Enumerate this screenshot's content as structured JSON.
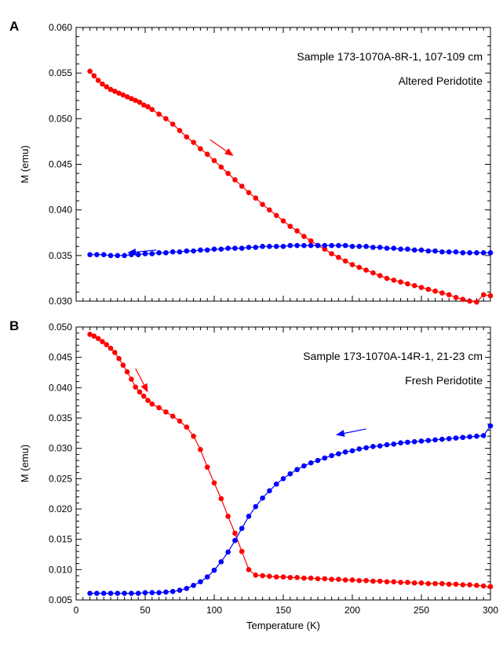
{
  "panels_meta": {
    "colors": {
      "cooling": "#ff0000",
      "warming": "#0000ff",
      "axis": "#000000"
    }
  },
  "chart_data": [
    {
      "type": "scatter",
      "panel_label": "A",
      "ylabel": "M (emu)",
      "xlabel": "",
      "xlim": [
        0,
        300
      ],
      "ylim": [
        0.03,
        0.06
      ],
      "xticks": [
        0,
        50,
        100,
        150,
        200,
        250,
        300
      ],
      "xticklabels_shown": false,
      "yticks": [
        "0.030",
        "0.035",
        "0.040",
        "0.045",
        "0.050",
        "0.055",
        "0.060"
      ],
      "annotations": [
        "Sample 173-1070A-8R-1, 107-109 cm",
        "Altered Peridotite"
      ],
      "arrows": [
        {
          "series": "cooling",
          "color": "#ff0000",
          "from": [
            97,
            0.0477
          ],
          "to": [
            114,
            0.0459
          ]
        },
        {
          "series": "warming",
          "color": "#0000ff",
          "from": [
            58,
            0.0356
          ],
          "to": [
            37,
            0.0353
          ]
        }
      ],
      "series": [
        {
          "color": "#ff0000",
          "x": [
            10,
            13,
            16,
            19,
            22,
            25,
            28,
            31,
            34,
            37,
            40,
            43,
            46,
            49,
            52,
            55,
            60,
            65,
            70,
            75,
            80,
            85,
            90,
            95,
            100,
            105,
            110,
            115,
            120,
            125,
            130,
            135,
            140,
            145,
            150,
            155,
            160,
            165,
            170,
            175,
            180,
            185,
            190,
            195,
            200,
            205,
            210,
            215,
            220,
            225,
            230,
            235,
            240,
            245,
            250,
            255,
            260,
            265,
            270,
            275,
            280,
            285,
            290,
            295,
            300
          ],
          "y": [
            0.0552,
            0.0547,
            0.0542,
            0.0538,
            0.0535,
            0.0532,
            0.053,
            0.0528,
            0.0526,
            0.0524,
            0.0522,
            0.052,
            0.0518,
            0.0515,
            0.0513,
            0.051,
            0.0505,
            0.05,
            0.0494,
            0.0487,
            0.048,
            0.0474,
            0.0467,
            0.0461,
            0.0454,
            0.0447,
            0.044,
            0.0433,
            0.0426,
            0.0419,
            0.0413,
            0.0406,
            0.04,
            0.0394,
            0.0388,
            0.0382,
            0.0377,
            0.0371,
            0.0366,
            0.0361,
            0.0357,
            0.0352,
            0.0348,
            0.0344,
            0.034,
            0.0337,
            0.0334,
            0.0331,
            0.0328,
            0.0325,
            0.0323,
            0.0321,
            0.0319,
            0.0317,
            0.0315,
            0.0313,
            0.0311,
            0.0309,
            0.0307,
            0.0304,
            0.0302,
            0.03,
            0.0299,
            0.0307,
            0.0306
          ]
        },
        {
          "color": "#0000ff",
          "x": [
            10,
            15,
            20,
            25,
            30,
            35,
            40,
            45,
            50,
            55,
            60,
            65,
            70,
            75,
            80,
            85,
            90,
            95,
            100,
            105,
            110,
            115,
            120,
            125,
            130,
            135,
            140,
            145,
            150,
            155,
            160,
            165,
            170,
            175,
            180,
            185,
            190,
            195,
            200,
            205,
            210,
            215,
            220,
            225,
            230,
            235,
            240,
            245,
            250,
            255,
            260,
            265,
            270,
            275,
            280,
            285,
            290,
            295,
            300
          ],
          "y": [
            0.0351,
            0.0351,
            0.0351,
            0.035,
            0.035,
            0.035,
            0.0351,
            0.0351,
            0.0352,
            0.0352,
            0.0353,
            0.0353,
            0.0354,
            0.0354,
            0.0355,
            0.0355,
            0.0356,
            0.0356,
            0.0357,
            0.0357,
            0.0358,
            0.0358,
            0.0358,
            0.0359,
            0.0359,
            0.036,
            0.036,
            0.036,
            0.036,
            0.0361,
            0.0361,
            0.0361,
            0.0361,
            0.0361,
            0.0361,
            0.0361,
            0.0361,
            0.0361,
            0.036,
            0.036,
            0.036,
            0.0359,
            0.0359,
            0.0358,
            0.0358,
            0.0357,
            0.0357,
            0.0356,
            0.0356,
            0.0355,
            0.0355,
            0.0354,
            0.0354,
            0.0354,
            0.0353,
            0.0353,
            0.0353,
            0.0353,
            0.0353
          ]
        }
      ]
    },
    {
      "type": "scatter",
      "panel_label": "B",
      "ylabel": "M (emu)",
      "xlabel": "Temperature (K)",
      "xlim": [
        0,
        300
      ],
      "ylim": [
        0.005,
        0.05
      ],
      "xticks": [
        0,
        50,
        100,
        150,
        200,
        250,
        300
      ],
      "xticklabels_shown": true,
      "yticks": [
        "0.005",
        "0.010",
        "0.015",
        "0.020",
        "0.025",
        "0.030",
        "0.035",
        "0.040",
        "0.045",
        "0.050"
      ],
      "annotations": [
        "Sample 173-1070A-14R-1, 21-23 cm",
        "Fresh Peridotite"
      ],
      "arrows": [
        {
          "series": "cooling",
          "color": "#ff0000",
          "from": [
            43,
            0.0432
          ],
          "to": [
            52,
            0.0392
          ]
        },
        {
          "series": "warming",
          "color": "#0000ff",
          "from": [
            210,
            0.0332
          ],
          "to": [
            188,
            0.0322
          ]
        }
      ],
      "series": [
        {
          "color": "#ff0000",
          "x": [
            10,
            13,
            16,
            19,
            22,
            25,
            28,
            31,
            34,
            37,
            40,
            43,
            46,
            49,
            52,
            55,
            60,
            65,
            70,
            75,
            80,
            85,
            90,
            95,
            100,
            105,
            110,
            115,
            120,
            125,
            130,
            135,
            140,
            145,
            150,
            155,
            160,
            165,
            170,
            175,
            180,
            185,
            190,
            195,
            200,
            205,
            210,
            215,
            220,
            225,
            230,
            235,
            240,
            245,
            250,
            255,
            260,
            265,
            270,
            275,
            280,
            285,
            290,
            295,
            300
          ],
          "y": [
            0.0488,
            0.0485,
            0.0481,
            0.0476,
            0.0471,
            0.0465,
            0.0458,
            0.0448,
            0.0437,
            0.0426,
            0.0414,
            0.0401,
            0.0393,
            0.0386,
            0.0379,
            0.0373,
            0.0367,
            0.036,
            0.0353,
            0.0345,
            0.0335,
            0.032,
            0.0298,
            0.0269,
            0.0243,
            0.0217,
            0.0188,
            0.016,
            0.013,
            0.01,
            0.0091,
            0.009,
            0.0089,
            0.0088,
            0.0088,
            0.0087,
            0.0087,
            0.0086,
            0.0086,
            0.0085,
            0.0085,
            0.0084,
            0.0084,
            0.0083,
            0.0083,
            0.0082,
            0.0082,
            0.0081,
            0.0081,
            0.008,
            0.008,
            0.0079,
            0.0079,
            0.0078,
            0.0078,
            0.0077,
            0.0077,
            0.0077,
            0.0076,
            0.0076,
            0.0075,
            0.0075,
            0.0074,
            0.0073,
            0.0072
          ]
        },
        {
          "color": "#0000ff",
          "x": [
            10,
            15,
            20,
            25,
            30,
            35,
            40,
            45,
            50,
            55,
            60,
            65,
            70,
            75,
            80,
            85,
            90,
            95,
            100,
            105,
            110,
            115,
            120,
            125,
            130,
            135,
            140,
            145,
            150,
            155,
            160,
            165,
            170,
            175,
            180,
            185,
            190,
            195,
            200,
            205,
            210,
            215,
            220,
            225,
            230,
            235,
            240,
            245,
            250,
            255,
            260,
            265,
            270,
            275,
            280,
            285,
            290,
            295,
            300
          ],
          "y": [
            0.0061,
            0.0061,
            0.0061,
            0.0061,
            0.0061,
            0.0061,
            0.0061,
            0.0061,
            0.0062,
            0.0062,
            0.0062,
            0.0063,
            0.0064,
            0.0066,
            0.0069,
            0.0074,
            0.008,
            0.0088,
            0.0099,
            0.0113,
            0.0129,
            0.0148,
            0.0168,
            0.0188,
            0.0204,
            0.0218,
            0.023,
            0.0241,
            0.025,
            0.0258,
            0.0265,
            0.0271,
            0.0276,
            0.028,
            0.0284,
            0.0288,
            0.0291,
            0.0294,
            0.0296,
            0.0299,
            0.0301,
            0.0303,
            0.0304,
            0.0306,
            0.0307,
            0.0309,
            0.031,
            0.0311,
            0.0312,
            0.0313,
            0.0314,
            0.0315,
            0.0316,
            0.0317,
            0.0318,
            0.0319,
            0.032,
            0.0321,
            0.0337
          ]
        }
      ]
    }
  ]
}
